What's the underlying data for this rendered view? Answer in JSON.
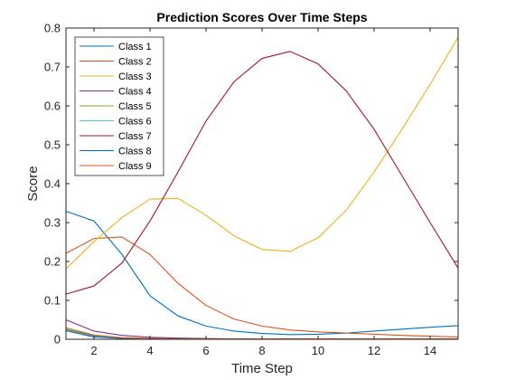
{
  "chart_data": {
    "type": "line",
    "title": "Prediction Scores Over Time Steps",
    "xlabel": "Time Step",
    "ylabel": "Score",
    "xlim": [
      1,
      15
    ],
    "ylim": [
      0,
      0.8
    ],
    "xticks": [
      2,
      4,
      6,
      8,
      10,
      12,
      14
    ],
    "xtick_labels": [
      "2",
      "4",
      "6",
      "8",
      "10",
      "12",
      "14"
    ],
    "yticks": [
      0,
      0.1,
      0.2,
      0.3,
      0.4,
      0.5,
      0.6,
      0.7,
      0.8
    ],
    "ytick_labels": [
      "0",
      "0.1",
      "0.2",
      "0.3",
      "0.4",
      "0.5",
      "0.6",
      "0.7",
      "0.8"
    ],
    "grid": false,
    "legend_position": "top-left",
    "x": [
      1,
      2,
      3,
      4,
      5,
      6,
      7,
      8,
      9,
      10,
      11,
      12,
      13,
      14,
      15
    ],
    "series": [
      {
        "name": "Class 1",
        "color": "#0072BD",
        "values": [
          0.329,
          0.304,
          0.218,
          0.112,
          0.06,
          0.034,
          0.021,
          0.015,
          0.012,
          0.013,
          0.016,
          0.021,
          0.026,
          0.031,
          0.035
        ]
      },
      {
        "name": "Class 2",
        "color": "#D95319",
        "values": [
          0.221,
          0.259,
          0.263,
          0.218,
          0.144,
          0.087,
          0.052,
          0.034,
          0.024,
          0.019,
          0.016,
          0.013,
          0.01,
          0.008,
          0.006
        ]
      },
      {
        "name": "Class 3",
        "color": "#EDB120",
        "values": [
          0.181,
          0.251,
          0.313,
          0.36,
          0.362,
          0.319,
          0.266,
          0.231,
          0.226,
          0.261,
          0.331,
          0.43,
          0.54,
          0.655,
          0.776
        ]
      },
      {
        "name": "Class 4",
        "color": "#7E2F8E",
        "values": [
          0.05,
          0.021,
          0.01,
          0.005,
          0.003,
          0.002,
          0.001,
          0.001,
          0.001,
          0.001,
          0.001,
          0.001,
          0.001,
          0.001,
          0.001
        ]
      },
      {
        "name": "Class 5",
        "color": "#77AC30",
        "values": [
          0.03,
          0.011,
          0.004,
          0.002,
          0.001,
          0.001,
          0.001,
          0.001,
          0.001,
          0.001,
          0.001,
          0.001,
          0.001,
          0.001,
          0.001
        ]
      },
      {
        "name": "Class 6",
        "color": "#4DBEEE",
        "values": [
          0.025,
          0.008,
          0.003,
          0.001,
          0.001,
          0.001,
          0.001,
          0.001,
          0.001,
          0.001,
          0.001,
          0.001,
          0.001,
          0.001,
          0.001
        ]
      },
      {
        "name": "Class 7",
        "color": "#A2142F",
        "values": [
          0.116,
          0.137,
          0.196,
          0.304,
          0.43,
          0.561,
          0.662,
          0.722,
          0.74,
          0.708,
          0.639,
          0.54,
          0.42,
          0.3,
          0.183
        ]
      },
      {
        "name": "Class 8",
        "color": "#0072BD",
        "values": [
          0.022,
          0.006,
          0.002,
          0.001,
          0.001,
          0.001,
          0.001,
          0.001,
          0.001,
          0.001,
          0.001,
          0.001,
          0.001,
          0.001,
          0.001
        ]
      },
      {
        "name": "Class 9",
        "color": "#D95319",
        "values": [
          0.026,
          0.01,
          0.004,
          0.002,
          0.001,
          0.001,
          0.001,
          0.001,
          0.001,
          0.001,
          0.001,
          0.001,
          0.001,
          0.001,
          0.001
        ]
      }
    ]
  }
}
